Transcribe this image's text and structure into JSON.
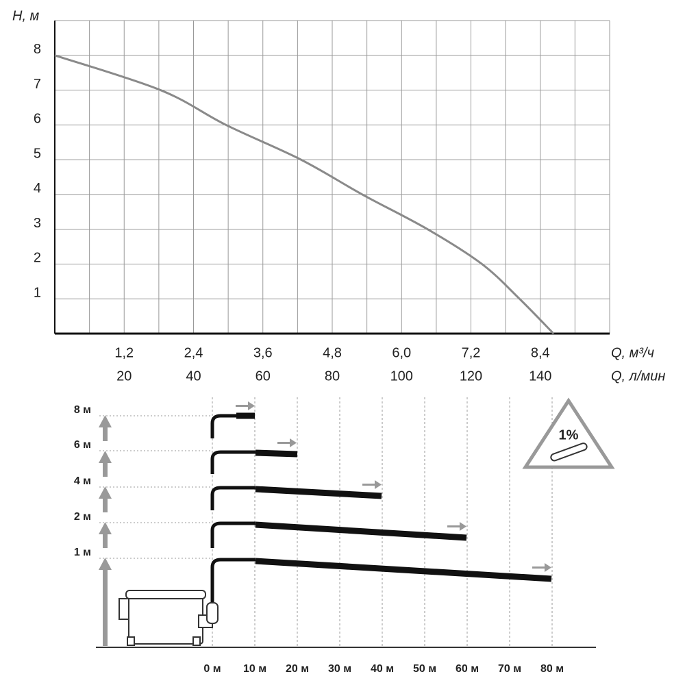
{
  "chart_data": {
    "type": "line",
    "ylabel": "H, м",
    "xlabel": "Q, м³/ч",
    "x2label": "Q, л/мин",
    "x": [
      0,
      1.83,
      2.96,
      4.26,
      5.32,
      6.45,
      7.39,
      8.04,
      8.63
    ],
    "series": [
      {
        "color": "#8a8a8a",
        "values": [
          8,
          7,
          6,
          5,
          4,
          3,
          2,
          1,
          0
        ]
      }
    ],
    "xlim": [
      0,
      9.6
    ],
    "xticks": [
      {
        "value": 1.2,
        "label": "1,2"
      },
      {
        "value": 2.4,
        "label": "2,4"
      },
      {
        "value": 3.6,
        "label": "3,6"
      },
      {
        "value": 4.8,
        "label": "4,8"
      },
      {
        "value": 6.0,
        "label": "6,0"
      },
      {
        "value": 7.2,
        "label": "7,2"
      },
      {
        "value": 8.4,
        "label": "8,4"
      }
    ],
    "x2lim": [
      0,
      160
    ],
    "x2ticks": [
      20,
      40,
      60,
      80,
      100,
      120,
      140
    ],
    "xgrid": [
      0.6,
      1.2,
      1.8,
      2.4,
      3.0,
      3.6,
      4.2,
      4.8,
      5.4,
      6.0,
      6.6,
      7.2,
      7.8,
      8.4,
      9.0,
      9.6
    ],
    "ylim": [
      0,
      9
    ],
    "yticks": [
      1,
      2,
      3,
      4,
      5,
      6,
      7,
      8
    ],
    "grid": true
  },
  "diagram": {
    "height_labels": [
      "8 м",
      "6 м",
      "4 м",
      "2 м",
      "1 м"
    ],
    "distance_labels": [
      "0 м",
      "10 м",
      "20 м",
      "30 м",
      "40 м",
      "50 м",
      "60 м",
      "70 м",
      "80 м"
    ],
    "slope_label": "1%"
  }
}
